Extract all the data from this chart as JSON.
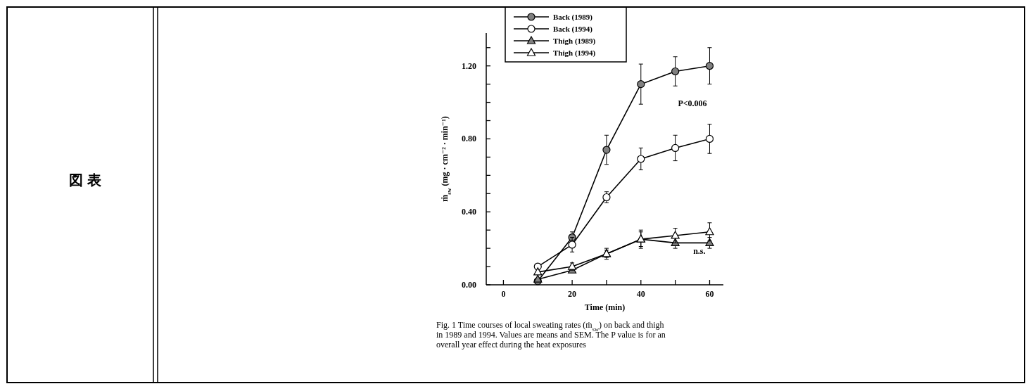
{
  "chart_data": {
    "type": "line",
    "xlabel": "Time (min)",
    "ylabel": "ṁ$_{sw}$ (mg · cm⁻² · min⁻¹)",
    "x": [
      10,
      20,
      30,
      40,
      50,
      60
    ],
    "xlim": [
      -5,
      64
    ],
    "xticks": [
      0,
      {
        "value": 10,
        "label": null
      },
      20,
      {
        "value": 30,
        "label": null
      },
      40,
      {
        "value": 50,
        "label": null
      },
      60
    ],
    "ylim": [
      0,
      1.38
    ],
    "yticks": [
      "0.00",
      {
        "value": 0.1,
        "label": null
      },
      {
        "value": 0.2,
        "label": null
      },
      {
        "value": 0.3,
        "label": null
      },
      {
        "value": 0.4,
        "label": "0.40"
      },
      {
        "value": 0.5,
        "label": null
      },
      {
        "value": 0.6,
        "label": null
      },
      {
        "value": 0.7,
        "label": null
      },
      {
        "value": 0.8,
        "label": "0.80"
      },
      {
        "value": 0.9,
        "label": null
      },
      {
        "value": 1.0,
        "label": null
      },
      {
        "value": 1.1,
        "label": null
      },
      {
        "value": 1.2,
        "label": "1.20"
      },
      {
        "value": 1.3,
        "label": null
      }
    ],
    "series": [
      {
        "name": "Back (1989)",
        "color": "#808080",
        "marker": "circle",
        "values": [
          0.02,
          0.26,
          0.74,
          1.1,
          1.17,
          1.2
        ],
        "errors": [
          null,
          0.03,
          0.08,
          0.11,
          0.08,
          0.1
        ]
      },
      {
        "name": "Back (1994)",
        "color": "#ffffff",
        "marker": "circle",
        "values": [
          0.1,
          0.22,
          0.48,
          0.69,
          0.75,
          0.8
        ],
        "errors": [
          null,
          0.04,
          0.03,
          0.06,
          0.07,
          0.08
        ]
      },
      {
        "name": "Thigh (1989)",
        "color": "#808080",
        "marker": "triangle",
        "values": [
          0.03,
          0.08,
          0.17,
          0.25,
          0.23,
          0.23
        ],
        "errors": [
          null,
          null,
          0.02,
          0.04,
          0.03,
          0.03
        ]
      },
      {
        "name": "Thigh (1994)",
        "color": "#ffffff",
        "marker": "triangle",
        "values": [
          0.07,
          0.1,
          0.17,
          0.25,
          0.27,
          0.29
        ],
        "errors": [
          null,
          0.02,
          0.03,
          0.05,
          0.04,
          0.05
        ]
      }
    ],
    "legend": "top left",
    "grid": false,
    "annotations": [
      "P<0.006",
      "n.s.",
      "Fig. 1 Time courses of local sweating rates (ṁ$_{sw}$) on back and thigh in 1989 and 1994. Values are means and SEM. The P value is for an overall year effect during the heat exposures",
      "図 表"
    ]
  }
}
